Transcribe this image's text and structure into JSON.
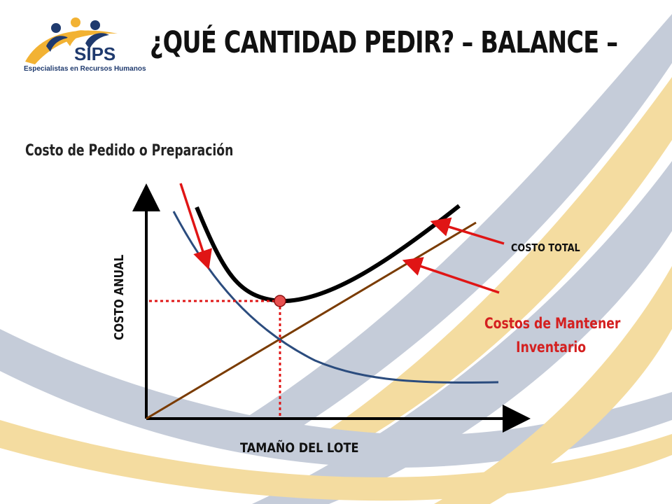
{
  "logo": {
    "name": "SIPS",
    "tagline": "Especialistas en Recursos Humanos"
  },
  "title": "¿QUÉ CANTIDAD PEDIR? – BALANCE –",
  "subtitle": "Costo de Pedido o Preparación",
  "diagram": {
    "y_axis_label": "COSTO ANUAL",
    "x_axis_label": "TAMAÑO DEL LOTE",
    "total_cost_label": "COSTO TOTAL",
    "holding_cost_label_line1": "Costos de Mantener",
    "holding_cost_label_line2": "Inventario"
  },
  "colors": {
    "total_cost": "#000000",
    "ordering_cost": "#2b4c7e",
    "holding_cost": "#7a3b00",
    "arrows": "#e01515",
    "bg_blue": "#c5ccd9",
    "bg_gold": "#f4dca0"
  }
}
